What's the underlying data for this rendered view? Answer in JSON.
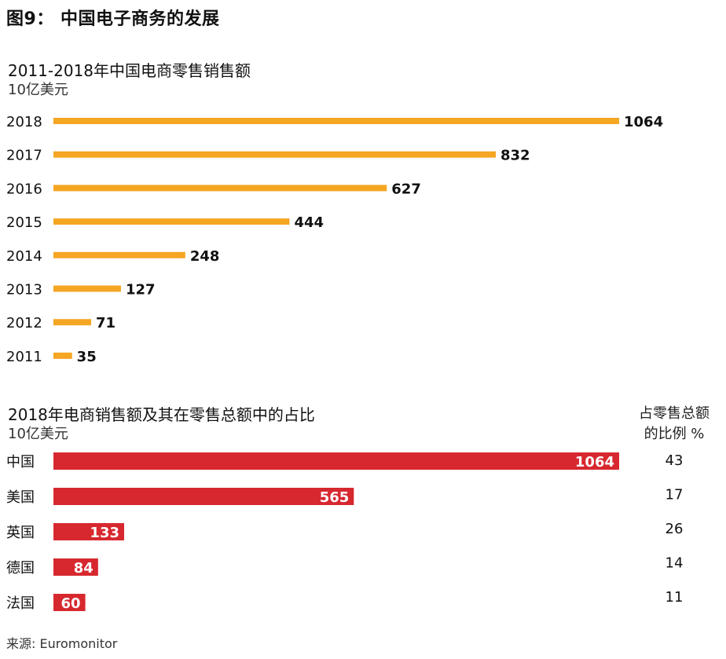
{
  "figure_title": "图9：  中国电子商务的发展",
  "source": "来源: Euromonitor",
  "chart_data": [
    {
      "type": "bar",
      "orientation": "horizontal",
      "title": "2011-2018年中国电商零售销售额",
      "unit": "10亿美元",
      "color": "#F5A623",
      "categories": [
        "2018",
        "2017",
        "2016",
        "2015",
        "2014",
        "2013",
        "2012",
        "2011"
      ],
      "values": [
        1064,
        832,
        627,
        444,
        248,
        127,
        71,
        35
      ],
      "xlim": [
        0,
        1064
      ],
      "grid": false,
      "legend": "none"
    },
    {
      "type": "bar",
      "orientation": "horizontal",
      "title": "2018年电商销售额及其在零售总额中的占比",
      "unit": "10亿美元",
      "color": "#D7282F",
      "categories": [
        "中国",
        "美国",
        "英国",
        "德国",
        "法国"
      ],
      "values": [
        1064,
        565,
        133,
        84,
        60
      ],
      "share_header_line1": "占零售总额",
      "share_header_line2": "的比例 %",
      "share_percent": [
        43,
        17,
        26,
        14,
        11
      ],
      "xlim": [
        0,
        1064
      ],
      "grid": false,
      "legend": "none"
    }
  ]
}
